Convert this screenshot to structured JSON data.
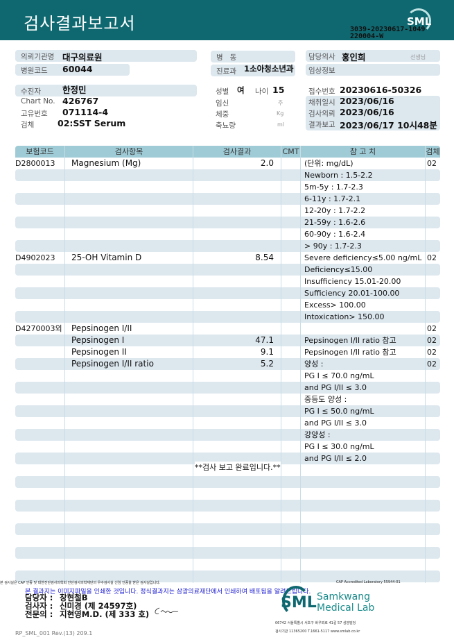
{
  "header": {
    "title": "검사결과보고서",
    "logo": "SML",
    "doc_no_1": "3039-20230617-1049",
    "doc_no_2": "220004-W"
  },
  "info": {
    "institution_label": "의뢰기관명",
    "institution": "대구의료원",
    "hospital_code_label": "병원코드",
    "hospital_code": "60044",
    "ward_label": "병   동",
    "ward": "",
    "dept_label": "진료과",
    "dept": "1소아청소년과",
    "doctor_label": "담당의사",
    "doctor": "홍인희",
    "doctor_suffix": "선생님",
    "clinical_label": "임상정보",
    "clinical": "",
    "patient_label": "수진자",
    "patient": "한정민",
    "chart_label": "Chart No.",
    "chart": "426767",
    "id_label": "고유번호",
    "id": "071114-4",
    "specimen_label": "검체",
    "specimen": "02:SST Serum",
    "sex_label": "성별",
    "sex": "여",
    "age_label": "나이",
    "age": "15",
    "preg_label": "임신",
    "preg_unit": "주",
    "weight_label": "체중",
    "weight_unit": "Kg",
    "urine_label": "축뇨량",
    "urine_unit": "ml",
    "receipt_label": "접수번호",
    "receipt": "20230616-50326",
    "collect_label": "채취일시",
    "collect": "2023/06/16",
    "request_label": "검사의뢰",
    "request": "2023/06/16",
    "report_label": "결과보고",
    "report": "2023/06/17 10시48분"
  },
  "table": {
    "headers": [
      "보험코드",
      "검사항목",
      "검사결과",
      "CMT",
      "참 고 치",
      "검체"
    ],
    "rows": [
      [
        "D2800013",
        "Magnesium (Mg)",
        "2.0",
        "",
        "(단위: mg/dL)",
        "02"
      ],
      [
        "",
        "",
        "",
        "",
        "Newborn : 1.5-2.2",
        ""
      ],
      [
        "",
        "",
        "",
        "",
        "5m-5y : 1.7-2.3",
        ""
      ],
      [
        "",
        "",
        "",
        "",
        "6-11y : 1.7-2.1",
        ""
      ],
      [
        "",
        "",
        "",
        "",
        "12-20y : 1.7-2.2",
        ""
      ],
      [
        "",
        "",
        "",
        "",
        "21-59y : 1.6-2.6",
        ""
      ],
      [
        "",
        "",
        "",
        "",
        "60-90y : 1.6-2.4",
        ""
      ],
      [
        "",
        "",
        "",
        "",
        "> 90y : 1.7-2.3",
        ""
      ],
      [
        "D4902023",
        "25-OH Vitamin D",
        "8.54",
        "",
        "Severe deficiency≤5.00 ng/mL",
        "02"
      ],
      [
        "",
        "",
        "",
        "",
        "Deficiency≤15.00",
        ""
      ],
      [
        "",
        "",
        "",
        "",
        "Insufficiency 15.01-20.00",
        ""
      ],
      [
        "",
        "",
        "",
        "",
        "Sufficiency 20.01-100.00",
        ""
      ],
      [
        "",
        "",
        "",
        "",
        "Excess> 100.00",
        ""
      ],
      [
        "",
        "",
        "",
        "",
        "Intoxication> 150.00",
        ""
      ],
      [
        "D4270003외",
        "Pepsinogen I/II",
        "",
        "",
        "",
        "02"
      ],
      [
        "",
        "Pepsinogen I",
        "47.1",
        "",
        "Pepsinogen I/II ratio 참고",
        "02"
      ],
      [
        "",
        "Pepsinogen II",
        "9.1",
        "",
        "Pepsinogen I/II ratio 참고",
        "02"
      ],
      [
        "",
        "Pepsinogen I/II ratio",
        "5.2",
        "",
        "양성 :",
        "02"
      ],
      [
        "",
        "",
        "",
        "",
        "PG I ≤ 70.0 ng/mL",
        ""
      ],
      [
        "",
        "",
        "",
        "",
        "and PG I/II ≤ 3.0",
        ""
      ],
      [
        "",
        "",
        "",
        "",
        "중등도 양성 :",
        ""
      ],
      [
        "",
        "",
        "",
        "",
        "PG I ≤ 50.0 ng/mL",
        ""
      ],
      [
        "",
        "",
        "",
        "",
        "and PG I/II ≤ 3.0",
        ""
      ],
      [
        "",
        "",
        "",
        "",
        "강양성 :",
        ""
      ],
      [
        "",
        "",
        "",
        "",
        "PG I ≤ 30.0 ng/mL",
        ""
      ],
      [
        "",
        "",
        "",
        "",
        "and PG I/II ≤ 2.0",
        ""
      ],
      [
        "",
        "",
        "",
        "",
        "",
        ""
      ],
      [
        "",
        "",
        "",
        "",
        "",
        ""
      ],
      [
        "",
        "",
        "",
        "",
        "",
        ""
      ],
      [
        "",
        "",
        "",
        "",
        "",
        ""
      ],
      [
        "",
        "",
        "",
        "",
        "",
        ""
      ],
      [
        "",
        "",
        "",
        "",
        "",
        ""
      ],
      [
        "",
        "",
        "",
        "",
        "",
        ""
      ],
      [
        "",
        "",
        "",
        "",
        "",
        ""
      ],
      [
        "",
        "",
        "",
        "",
        "",
        ""
      ],
      [
        "",
        "",
        "",
        "",
        "",
        ""
      ]
    ],
    "completion": "**검사  보고  완료입니다.**"
  },
  "footer": {
    "cert_note": "본 검사실은 CAP 인증 및 대한진단검사의학회 진단검사의학재단의 우수검사실 신임 인증을 받은 검사실입니다.",
    "cap": "CAP Accredited Laboratory 55944-01",
    "notice": "본 결과지는 이미지파일을 인쇄한 것입니다. 정식결과지는 삼광의료재단에서 인쇄하여 배포됨을 알려드립니다.",
    "manager_label": "담당자 :",
    "manager": "장현철B",
    "tester_label": "검사자 :",
    "tester": "신미경 (제 24597호)",
    "specialist_label": "전문의 :",
    "specialist": "지현영M.D. (제 333 호)",
    "form_code": "RP_SML_001 Rev.(13) 209.1",
    "lab_logo": "SML",
    "lab_name_1": "Samkwang",
    "lab_name_2": "Medical Lab",
    "address": "06742 서울특별시 서초구 바우뫼로 41길 57 삼광빌딩",
    "contact": "검사기관 11365200 T.1661-5117 www.smlab.co.kr"
  }
}
